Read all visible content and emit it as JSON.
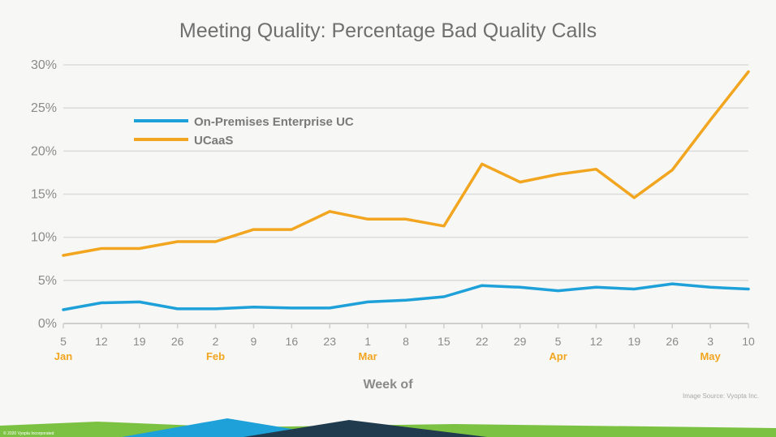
{
  "chart_data": {
    "type": "line",
    "title": "Meeting Quality: Percentage Bad Quality Calls",
    "xlabel": "Week of",
    "ylabel": "",
    "ylim": [
      0,
      30
    ],
    "yticks": [
      "0%",
      "5%",
      "10%",
      "15%",
      "20%",
      "25%",
      "30%"
    ],
    "categories": [
      "5",
      "12",
      "19",
      "26",
      "2",
      "9",
      "16",
      "23",
      "1",
      "8",
      "15",
      "22",
      "29",
      "5",
      "12",
      "19",
      "26",
      "3",
      "10"
    ],
    "month_labels": [
      {
        "label": "Jan",
        "index": 0
      },
      {
        "label": "Feb",
        "index": 4
      },
      {
        "label": "Mar",
        "index": 8
      },
      {
        "label": "Apr",
        "index": 13
      },
      {
        "label": "May",
        "index": 17
      }
    ],
    "series": [
      {
        "name": "On-Premises Enterprise UC",
        "color": "#1ea0d8",
        "values": [
          1.6,
          2.4,
          2.5,
          1.7,
          1.7,
          1.9,
          1.8,
          1.8,
          2.5,
          2.7,
          3.1,
          4.4,
          4.2,
          3.8,
          4.2,
          4.0,
          4.6,
          4.2,
          4.0
        ]
      },
      {
        "name": "UCaaS",
        "color": "#f2a51f",
        "values": [
          7.9,
          8.7,
          8.7,
          9.5,
          9.5,
          10.9,
          10.9,
          13.0,
          12.1,
          12.1,
          11.3,
          18.5,
          16.4,
          17.3,
          17.9,
          14.6,
          17.8,
          23.6,
          29.2
        ]
      }
    ],
    "grid": true,
    "legend_position": "upper-left"
  },
  "footer": {
    "source": "Image Source: Vyopta Inc.",
    "copyright": "© 2020 Vyopta Incorporated"
  }
}
